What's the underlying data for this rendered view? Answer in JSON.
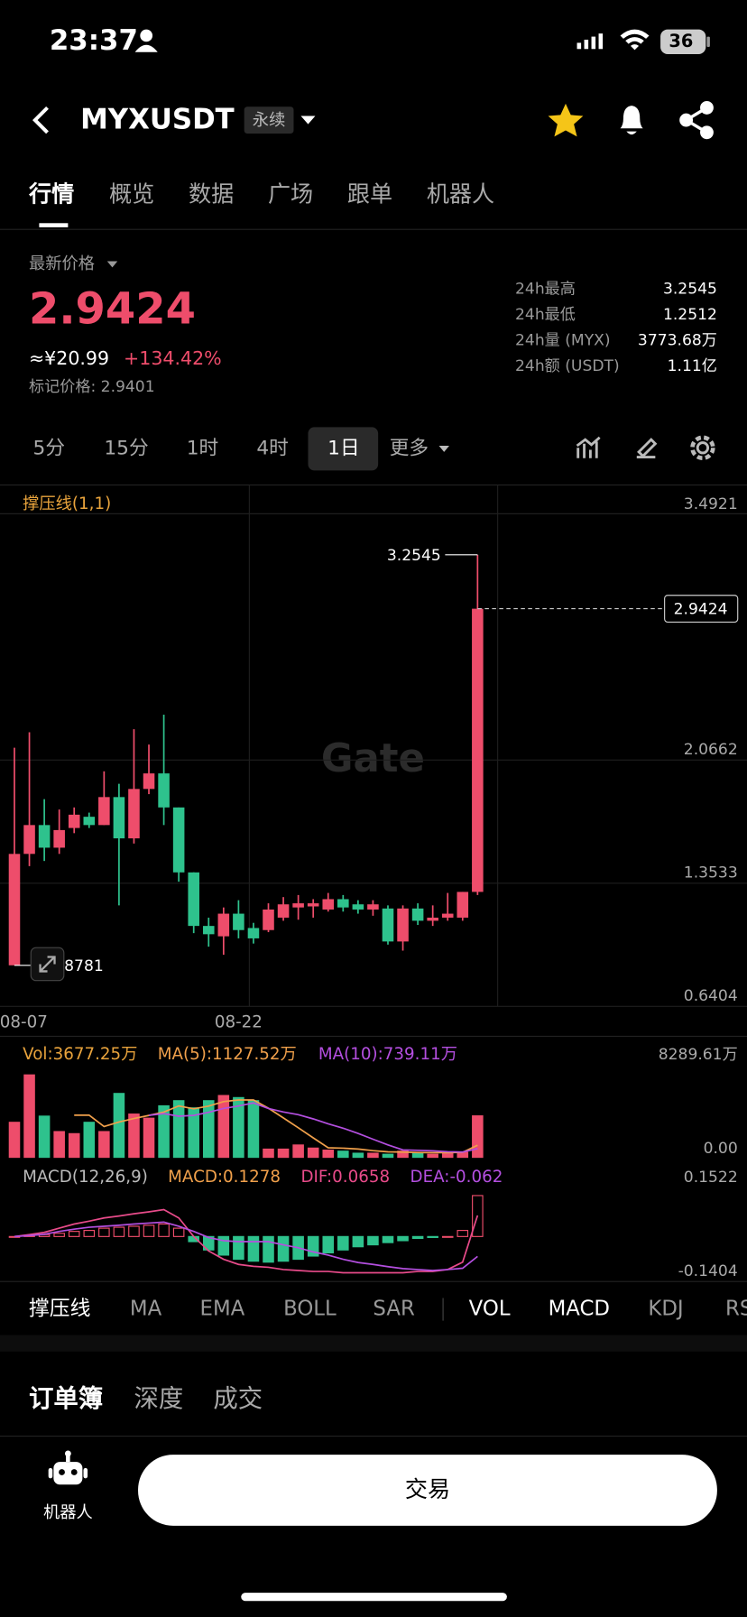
{
  "status": {
    "time": "23:37",
    "battery": "36"
  },
  "header": {
    "symbol": "MYXUSDT",
    "badge": "永续"
  },
  "tabs": [
    "行情",
    "概览",
    "数据",
    "广场",
    "跟单",
    "机器人"
  ],
  "price": {
    "label": "最新价格",
    "last": "2.9424",
    "cny": "≈¥20.99",
    "change": "+134.42%",
    "mark": "标记价格: 2.9401"
  },
  "stats": [
    {
      "label": "24h最高",
      "value": "3.2545"
    },
    {
      "label": "24h最低",
      "value": "1.2512"
    },
    {
      "label": "24h量 (MYX)",
      "value": "3773.68万"
    },
    {
      "label": "24h额 (USDT)",
      "value": "1.11亿"
    }
  ],
  "intervals": [
    "5分",
    "15分",
    "1时",
    "4时",
    "1日",
    "更多"
  ],
  "chart": {
    "type": "candlestick",
    "indicator": "撑压线(1,1)",
    "watermark": "Gate",
    "categories": [
      "08-07",
      null,
      null,
      null,
      null,
      null,
      null,
      null,
      null,
      null,
      null,
      null,
      null,
      null,
      null,
      "08-22",
      null,
      null,
      null,
      null,
      null,
      null,
      null,
      null,
      null,
      null,
      null,
      null,
      null,
      null,
      null,
      null
    ],
    "ylim": [
      0.6404,
      3.4921
    ],
    "yticks": [
      3.4921,
      2.0662,
      1.3533,
      0.6404
    ],
    "colors": {
      "up": "#ee4d6b",
      "down": "#2ec28d"
    },
    "candles": {
      "open": [
        0.8781,
        1.523,
        1.69,
        1.559,
        1.673,
        1.738,
        1.69,
        1.852,
        1.613,
        1.899,
        1.989,
        1.792,
        1.416,
        1.106,
        1.046,
        1.177,
        1.094,
        1.082,
        1.154,
        1.213,
        1.219,
        1.201,
        1.261,
        1.231,
        1.201,
        1.207,
        1.016,
        1.207,
        1.136,
        1.154,
        1.154,
        1.303
      ],
      "high": [
        2.138,
        2.227,
        1.84,
        1.78,
        1.792,
        1.762,
        2.001,
        1.929,
        2.245,
        2.156,
        2.329,
        1.792,
        1.416,
        1.154,
        1.213,
        1.255,
        1.124,
        1.237,
        1.273,
        1.285,
        1.261,
        1.297,
        1.285,
        1.255,
        1.255,
        1.225,
        1.225,
        1.237,
        1.225,
        1.297,
        1.303,
        3.2545
      ],
      "low": [
        0.8781,
        1.452,
        1.482,
        1.523,
        1.643,
        1.673,
        1.69,
        1.225,
        1.583,
        1.869,
        1.69,
        1.362,
        1.064,
        0.986,
        0.939,
        1.034,
        1.004,
        1.07,
        1.136,
        1.142,
        1.154,
        1.189,
        1.189,
        1.177,
        1.165,
        0.998,
        0.963,
        1.112,
        1.106,
        1.136,
        1.136,
        1.285
      ],
      "close": [
        1.523,
        1.69,
        1.559,
        1.661,
        1.75,
        1.69,
        1.852,
        1.613,
        1.899,
        1.989,
        1.792,
        1.416,
        1.106,
        1.058,
        1.177,
        1.082,
        1.034,
        1.201,
        1.231,
        1.237,
        1.237,
        1.261,
        1.213,
        1.201,
        1.231,
        1.016,
        1.207,
        1.136,
        1.154,
        1.177,
        1.303,
        2.9424
      ]
    },
    "volume": {
      "labels": [
        "Vol:3677.25万",
        "MA(5):1127.52万",
        "MA(10):739.11万"
      ],
      "ylim": [
        0,
        8289.61
      ],
      "yticks": [
        {
          "value": 8289.61,
          "label": "8289.61万"
        },
        {
          "value": 0,
          "label": "0.00"
        }
      ],
      "values": [
        3120,
        7220,
        3655,
        2318,
        2139,
        3120,
        2318,
        5616,
        3833,
        3476,
        4546,
        4992,
        4368,
        4992,
        5437,
        5259,
        4992,
        802,
        802,
        1159,
        891,
        713,
        624,
        446,
        446,
        357,
        624,
        446,
        357,
        446,
        535,
        3677.25
      ]
    },
    "macd": {
      "labels": [
        "MACD(12,26,9)",
        "MACD:0.1278",
        "DIF:0.0658",
        "DEA:-0.062"
      ],
      "ylim": [
        -0.1404,
        0.1522
      ],
      "yticks": [
        0.1522,
        -0.1404
      ],
      "hist": [
        0,
        0.003,
        0.006,
        0.01,
        0.016,
        0.019,
        0.026,
        0.029,
        0.032,
        0.035,
        0.039,
        0.026,
        -0.016,
        -0.042,
        -0.058,
        -0.071,
        -0.077,
        -0.08,
        -0.077,
        -0.071,
        -0.061,
        -0.051,
        -0.042,
        -0.032,
        -0.026,
        -0.019,
        -0.013,
        -0.006,
        -0.003,
        0,
        0.019,
        0.1278
      ],
      "dif": [
        0,
        0.006,
        0.013,
        0.026,
        0.039,
        0.048,
        0.058,
        0.064,
        0.071,
        0.077,
        0.084,
        0.058,
        0,
        -0.045,
        -0.071,
        -0.087,
        -0.093,
        -0.096,
        -0.103,
        -0.106,
        -0.109,
        -0.109,
        -0.113,
        -0.113,
        -0.113,
        -0.113,
        -0.113,
        -0.109,
        -0.109,
        -0.103,
        -0.08,
        0.0658
      ],
      "dea": [
        0,
        0.003,
        0.007,
        0.016,
        0.023,
        0.029,
        0.032,
        0.035,
        0.039,
        0.042,
        0.045,
        0.032,
        0.016,
        -0.003,
        -0.013,
        -0.016,
        -0.016,
        -0.016,
        -0.026,
        -0.035,
        -0.048,
        -0.058,
        -0.071,
        -0.081,
        -0.087,
        -0.094,
        -0.1,
        -0.103,
        -0.106,
        -0.103,
        -0.099,
        -0.062
      ]
    }
  },
  "indicators": [
    "撑压线",
    "MA",
    "EMA",
    "BOLL",
    "SAR",
    "VOL",
    "MACD",
    "KDJ",
    "RSI"
  ],
  "book_tabs": [
    "订单簿",
    "深度",
    "成交"
  ],
  "nav": {
    "robot": "机器人",
    "trade": "交易"
  }
}
